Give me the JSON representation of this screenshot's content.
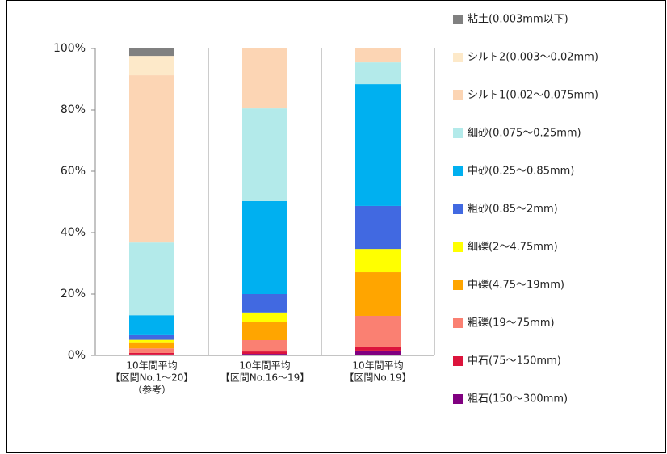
{
  "chart_data": {
    "type": "stacked_bar",
    "categories": [
      [
        "10年間平均",
        "【区間No.1～20】",
        "（参考）"
      ],
      [
        "10年間平均",
        "【区間No.16～19】"
      ],
      [
        "10年間平均",
        "【区間No.19】"
      ]
    ],
    "ylim": [
      0,
      100
    ],
    "yticks": [
      {
        "value": 0,
        "label": "0%"
      },
      {
        "value": 20,
        "label": "20%"
      },
      {
        "value": 40,
        "label": "40%"
      },
      {
        "value": 60,
        "label": "60%"
      },
      {
        "value": 80,
        "label": "80%"
      },
      {
        "value": 100,
        "label": "100%"
      }
    ],
    "series": [
      {
        "name": "粗石(150～300mm)",
        "color": "#800080",
        "values": [
          0.3,
          0.5,
          1.6
        ]
      },
      {
        "name": "中石(75～150mm)",
        "color": "#dc143c",
        "values": [
          0.5,
          0.8,
          1.3
        ]
      },
      {
        "name": "粗礫(19～75mm)",
        "color": "#fa8072",
        "values": [
          1.5,
          3.7,
          10
        ]
      },
      {
        "name": "中礫(4.75～19mm)",
        "color": "#ffa500",
        "values": [
          2,
          5.8,
          14.2
        ]
      },
      {
        "name": "細礫(2～4.75mm)",
        "color": "#ffff00",
        "values": [
          0.8,
          3.2,
          7.6
        ]
      },
      {
        "name": "粗砂(0.85～2mm)",
        "color": "#4169e1",
        "values": [
          1.5,
          6,
          14
        ]
      },
      {
        "name": "中砂(0.25～0.85mm)",
        "color": "#00b0f0",
        "values": [
          6.5,
          30.3,
          39.7
        ]
      },
      {
        "name": "細砂(0.075～0.25mm)",
        "color": "#b3eaea",
        "values": [
          23.7,
          30.2,
          7.1
        ]
      },
      {
        "name": "シルト1(0.02～0.075mm)",
        "color": "#fcd5b4",
        "values": [
          54.5,
          19.5,
          4.5
        ]
      },
      {
        "name": "シルト2(0.003～0.02mm)",
        "color": "#fde9c9",
        "values": [
          6.3,
          0,
          0
        ]
      },
      {
        "name": "粘土(0.003mm以下)",
        "color": "#808080",
        "values": [
          2.4,
          0,
          0
        ]
      }
    ]
  }
}
